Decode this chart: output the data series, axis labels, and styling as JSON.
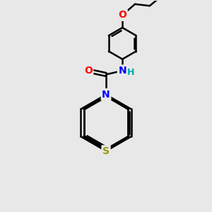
{
  "bg_color": "#e8e8e8",
  "atom_colors": {
    "C": "#000000",
    "N": "#0000ff",
    "O": "#ff0000",
    "S": "#999900",
    "H": "#00aaaa"
  },
  "bond_color": "#000000",
  "bond_width": 1.8
}
